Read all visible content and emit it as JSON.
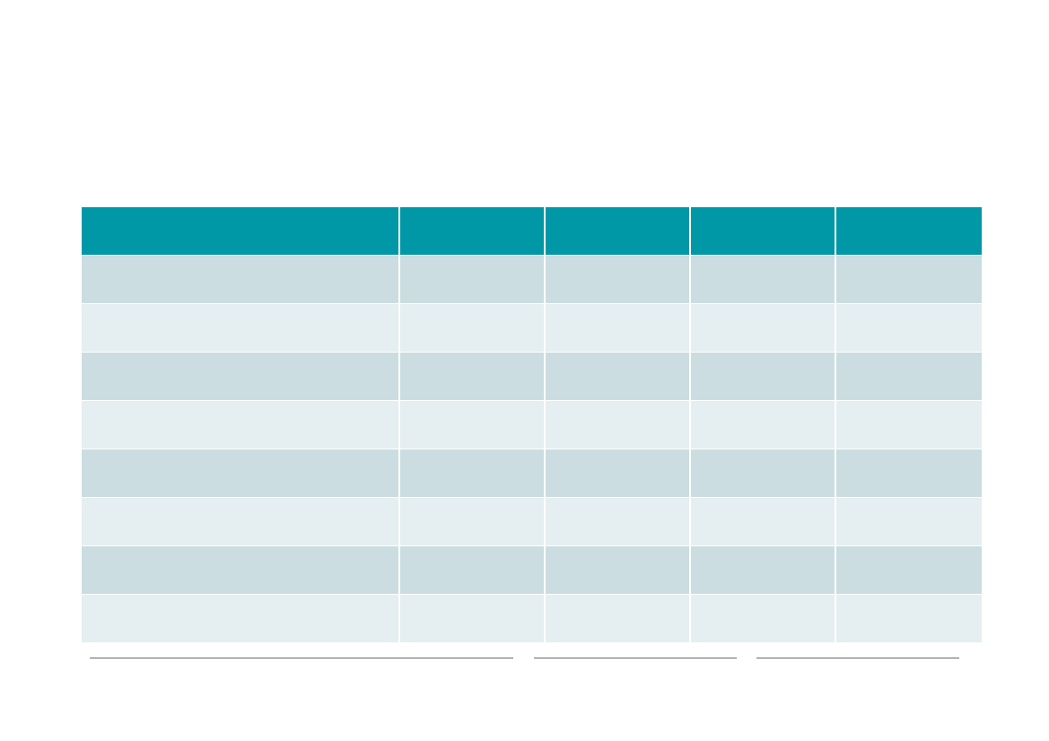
{
  "table": {
    "headers": [
      "",
      "",
      "",
      "",
      ""
    ],
    "rows": [
      [
        "",
        "",
        "",
        "",
        ""
      ],
      [
        "",
        "",
        "",
        "",
        ""
      ],
      [
        "",
        "",
        "",
        "",
        ""
      ],
      [
        "",
        "",
        "",
        "",
        ""
      ],
      [
        "",
        "",
        "",
        "",
        ""
      ],
      [
        "",
        "",
        "",
        "",
        ""
      ],
      [
        "",
        "",
        "",
        "",
        ""
      ],
      [
        "",
        "",
        "",
        "",
        ""
      ]
    ]
  },
  "colors": {
    "header": "#0097a7",
    "row_dark": "#cbdde1",
    "row_light": "#e5eef0",
    "signature_line": "#666666"
  },
  "signatures": [
    "",
    "",
    ""
  ]
}
